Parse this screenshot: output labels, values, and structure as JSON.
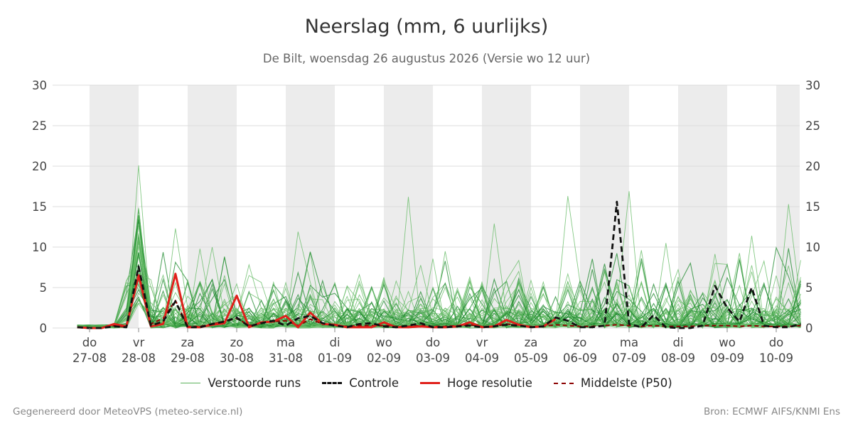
{
  "header": {
    "title": "Neerslag (mm, 6 uurlijks)",
    "subtitle": "De Bilt, woensdag 26 augustus 2026 (Versie wo 12 uur)"
  },
  "legend": {
    "runs": "Verstoorde runs",
    "controle": "Controle",
    "hires": "Hoge resolutie",
    "p50": "Middelste (P50)"
  },
  "footer": {
    "left": "Gegenereerd door MeteoVPS (meteo-service.nl)",
    "right": "Bron: ECMWF AIFS/KNMI Ens"
  },
  "colors": {
    "runs_light": "#66bb66",
    "runs_dark": "#1e8a2e",
    "controle": "#111111",
    "hires": "#e0201b",
    "p50": "#8b0000",
    "weekend_band": "#ececec",
    "grid": "#dddddd"
  },
  "chart_data": {
    "type": "line",
    "ylim": [
      0,
      30
    ],
    "yticks": [
      0,
      5,
      10,
      15,
      20,
      25,
      30
    ],
    "x_unit": "days since 27-08 00 UTC",
    "xlim": [
      -0.25,
      14.5
    ],
    "grid": true,
    "legend_position": "bottom",
    "x_ticks": [
      {
        "day": "do",
        "date": "27-08"
      },
      {
        "day": "vr",
        "date": "28-08"
      },
      {
        "day": "za",
        "date": "29-08"
      },
      {
        "day": "zo",
        "date": "30-08"
      },
      {
        "day": "ma",
        "date": "31-08"
      },
      {
        "day": "di",
        "date": "01-09"
      },
      {
        "day": "wo",
        "date": "02-09"
      },
      {
        "day": "do",
        "date": "03-09"
      },
      {
        "day": "vr",
        "date": "04-09"
      },
      {
        "day": "za",
        "date": "05-09"
      },
      {
        "day": "zo",
        "date": "06-09"
      },
      {
        "day": "ma",
        "date": "07-09"
      },
      {
        "day": "di",
        "date": "08-09"
      },
      {
        "day": "wo",
        "date": "09-09"
      },
      {
        "day": "do",
        "date": "10-09"
      }
    ],
    "shaded_days": [
      0,
      2,
      4,
      6,
      8,
      10,
      12,
      14
    ],
    "series": [
      {
        "name": "Controle",
        "style": "dashed",
        "color": "#111111",
        "points": [
          [
            -0.25,
            0.1
          ],
          [
            0,
            0
          ],
          [
            0.25,
            0
          ],
          [
            0.5,
            0.2
          ],
          [
            0.75,
            0.1
          ],
          [
            1,
            7.6
          ],
          [
            1.25,
            0.3
          ],
          [
            1.5,
            0.8
          ],
          [
            1.75,
            3.3
          ],
          [
            2,
            0.1
          ],
          [
            2.25,
            0.1
          ],
          [
            2.5,
            0.5
          ],
          [
            2.75,
            0.8
          ],
          [
            3,
            1.3
          ],
          [
            3.25,
            0.2
          ],
          [
            3.5,
            0.6
          ],
          [
            3.75,
            0.9
          ],
          [
            4,
            0.3
          ],
          [
            4.25,
            1.2
          ],
          [
            4.5,
            1.5
          ],
          [
            4.75,
            0.6
          ],
          [
            5,
            0.3
          ],
          [
            5.25,
            0.1
          ],
          [
            5.5,
            0.5
          ],
          [
            5.75,
            0.6
          ],
          [
            6,
            0.2
          ],
          [
            6.25,
            0.1
          ],
          [
            6.5,
            0.3
          ],
          [
            6.75,
            0.6
          ],
          [
            7,
            0.1
          ],
          [
            7.25,
            0.1
          ],
          [
            7.5,
            0.2
          ],
          [
            7.75,
            0.3
          ],
          [
            8,
            0.1
          ],
          [
            8.25,
            0.2
          ],
          [
            8.5,
            0.4
          ],
          [
            8.75,
            0.3
          ],
          [
            9,
            0.1
          ],
          [
            9.25,
            0.2
          ],
          [
            9.5,
            1.3
          ],
          [
            9.75,
            0.9
          ],
          [
            10,
            0.1
          ],
          [
            10.25,
            0.1
          ],
          [
            10.5,
            0.3
          ],
          [
            10.75,
            15.6
          ],
          [
            11,
            0.5
          ],
          [
            11.25,
            0.1
          ],
          [
            11.5,
            1.6
          ],
          [
            11.75,
            0.1
          ],
          [
            12,
            0
          ],
          [
            12.25,
            0
          ],
          [
            12.5,
            0.3
          ],
          [
            12.75,
            5.2
          ],
          [
            13,
            2.5
          ],
          [
            13.25,
            0.8
          ],
          [
            13.5,
            5.0
          ],
          [
            13.75,
            0.3
          ],
          [
            14,
            0.1
          ],
          [
            14.25,
            0.1
          ],
          [
            14.5,
            0.5
          ]
        ]
      },
      {
        "name": "Hoge resolutie",
        "style": "solid",
        "color": "#e0201b",
        "points": [
          [
            -0.25,
            0.1
          ],
          [
            0,
            0
          ],
          [
            0.25,
            0
          ],
          [
            0.5,
            0.5
          ],
          [
            0.75,
            0.2
          ],
          [
            1,
            6.5
          ],
          [
            1.25,
            0.2
          ],
          [
            1.5,
            0.5
          ],
          [
            1.75,
            6.7
          ],
          [
            2,
            0.1
          ],
          [
            2.25,
            0.1
          ],
          [
            2.5,
            0.4
          ],
          [
            2.75,
            0.6
          ],
          [
            3,
            4.0
          ],
          [
            3.25,
            0.1
          ],
          [
            3.5,
            0.7
          ],
          [
            3.75,
            0.8
          ],
          [
            4,
            1.5
          ],
          [
            4.25,
            0.1
          ],
          [
            4.5,
            1.9
          ],
          [
            4.75,
            0.5
          ],
          [
            5,
            0.4
          ],
          [
            5.25,
            0.1
          ],
          [
            5.5,
            0.1
          ],
          [
            5.75,
            0.1
          ],
          [
            6,
            0.7
          ],
          [
            6.25,
            0.1
          ],
          [
            6.5,
            0.1
          ],
          [
            6.75,
            0.2
          ],
          [
            7,
            0.1
          ],
          [
            7.25,
            0.1
          ],
          [
            7.5,
            0.2
          ],
          [
            7.75,
            0.7
          ],
          [
            8,
            0.1
          ],
          [
            8.25,
            0.2
          ],
          [
            8.5,
            1.0
          ],
          [
            8.75,
            0.4
          ],
          [
            9,
            0.1
          ],
          [
            9.25,
            0.2
          ],
          [
            9.5,
            1.1
          ]
        ]
      },
      {
        "name": "Middelste (P50)",
        "style": "dashed",
        "color": "#8b0000",
        "points": [
          [
            -0.25,
            0.1
          ],
          [
            0,
            0
          ],
          [
            0.25,
            0
          ],
          [
            0.5,
            0.3
          ],
          [
            0.75,
            0.1
          ],
          [
            1,
            6.8
          ],
          [
            1.25,
            0.5
          ],
          [
            1.5,
            1.2
          ],
          [
            1.75,
            3.4
          ],
          [
            2,
            0.2
          ],
          [
            2.25,
            0.2
          ],
          [
            2.5,
            0.5
          ],
          [
            2.75,
            0.8
          ],
          [
            3,
            1.2
          ],
          [
            3.25,
            0.3
          ],
          [
            3.5,
            0.6
          ],
          [
            3.75,
            0.8
          ],
          [
            4,
            0.9
          ],
          [
            4.25,
            0.3
          ],
          [
            4.5,
            1.1
          ],
          [
            4.75,
            0.5
          ],
          [
            5,
            0.3
          ],
          [
            5.25,
            0.2
          ],
          [
            5.5,
            0.3
          ],
          [
            5.75,
            0.3
          ],
          [
            6,
            0.3
          ],
          [
            6.25,
            0.2
          ],
          [
            6.5,
            0.2
          ],
          [
            6.75,
            0.3
          ],
          [
            7,
            0.2
          ],
          [
            7.25,
            0.2
          ],
          [
            7.5,
            0.3
          ],
          [
            7.75,
            0.4
          ],
          [
            8,
            0.2
          ],
          [
            8.25,
            0.2
          ],
          [
            8.5,
            0.5
          ],
          [
            8.75,
            0.3
          ],
          [
            9,
            0.2
          ],
          [
            9.25,
            0.2
          ],
          [
            9.5,
            0.4
          ],
          [
            9.75,
            0.3
          ],
          [
            10,
            0.2
          ],
          [
            10.25,
            0.2
          ],
          [
            10.5,
            0.3
          ],
          [
            10.75,
            0.4
          ],
          [
            11,
            0.3
          ],
          [
            11.25,
            0.2
          ],
          [
            11.5,
            0.3
          ],
          [
            11.75,
            0.2
          ],
          [
            12,
            0.2
          ],
          [
            12.25,
            0.2
          ],
          [
            12.5,
            0.3
          ],
          [
            12.75,
            0.3
          ],
          [
            13,
            0.3
          ],
          [
            13.25,
            0.2
          ],
          [
            13.5,
            0.3
          ],
          [
            13.75,
            0.2
          ],
          [
            14,
            0.2
          ],
          [
            14.25,
            0.2
          ],
          [
            14.5,
            0.3
          ]
        ]
      }
    ],
    "ensemble": {
      "name": "Verstoorde runs",
      "members": 50,
      "step_days": 0.25,
      "highlights": [
        {
          "x": 1,
          "max": 20.1
        },
        {
          "x": 1.75,
          "max": 12.3
        },
        {
          "x": 2.25,
          "max": 9.8
        },
        {
          "x": 4.25,
          "max": 11.9
        },
        {
          "x": 6.5,
          "max": 16.2
        },
        {
          "x": 8.25,
          "max": 12.9
        },
        {
          "x": 9.75,
          "max": 16.3
        },
        {
          "x": 11,
          "max": 16.9
        },
        {
          "x": 11.75,
          "max": 10.5
        },
        {
          "x": 13.5,
          "max": 11.4
        },
        {
          "x": 14.25,
          "max": 15.3
        }
      ]
    }
  }
}
